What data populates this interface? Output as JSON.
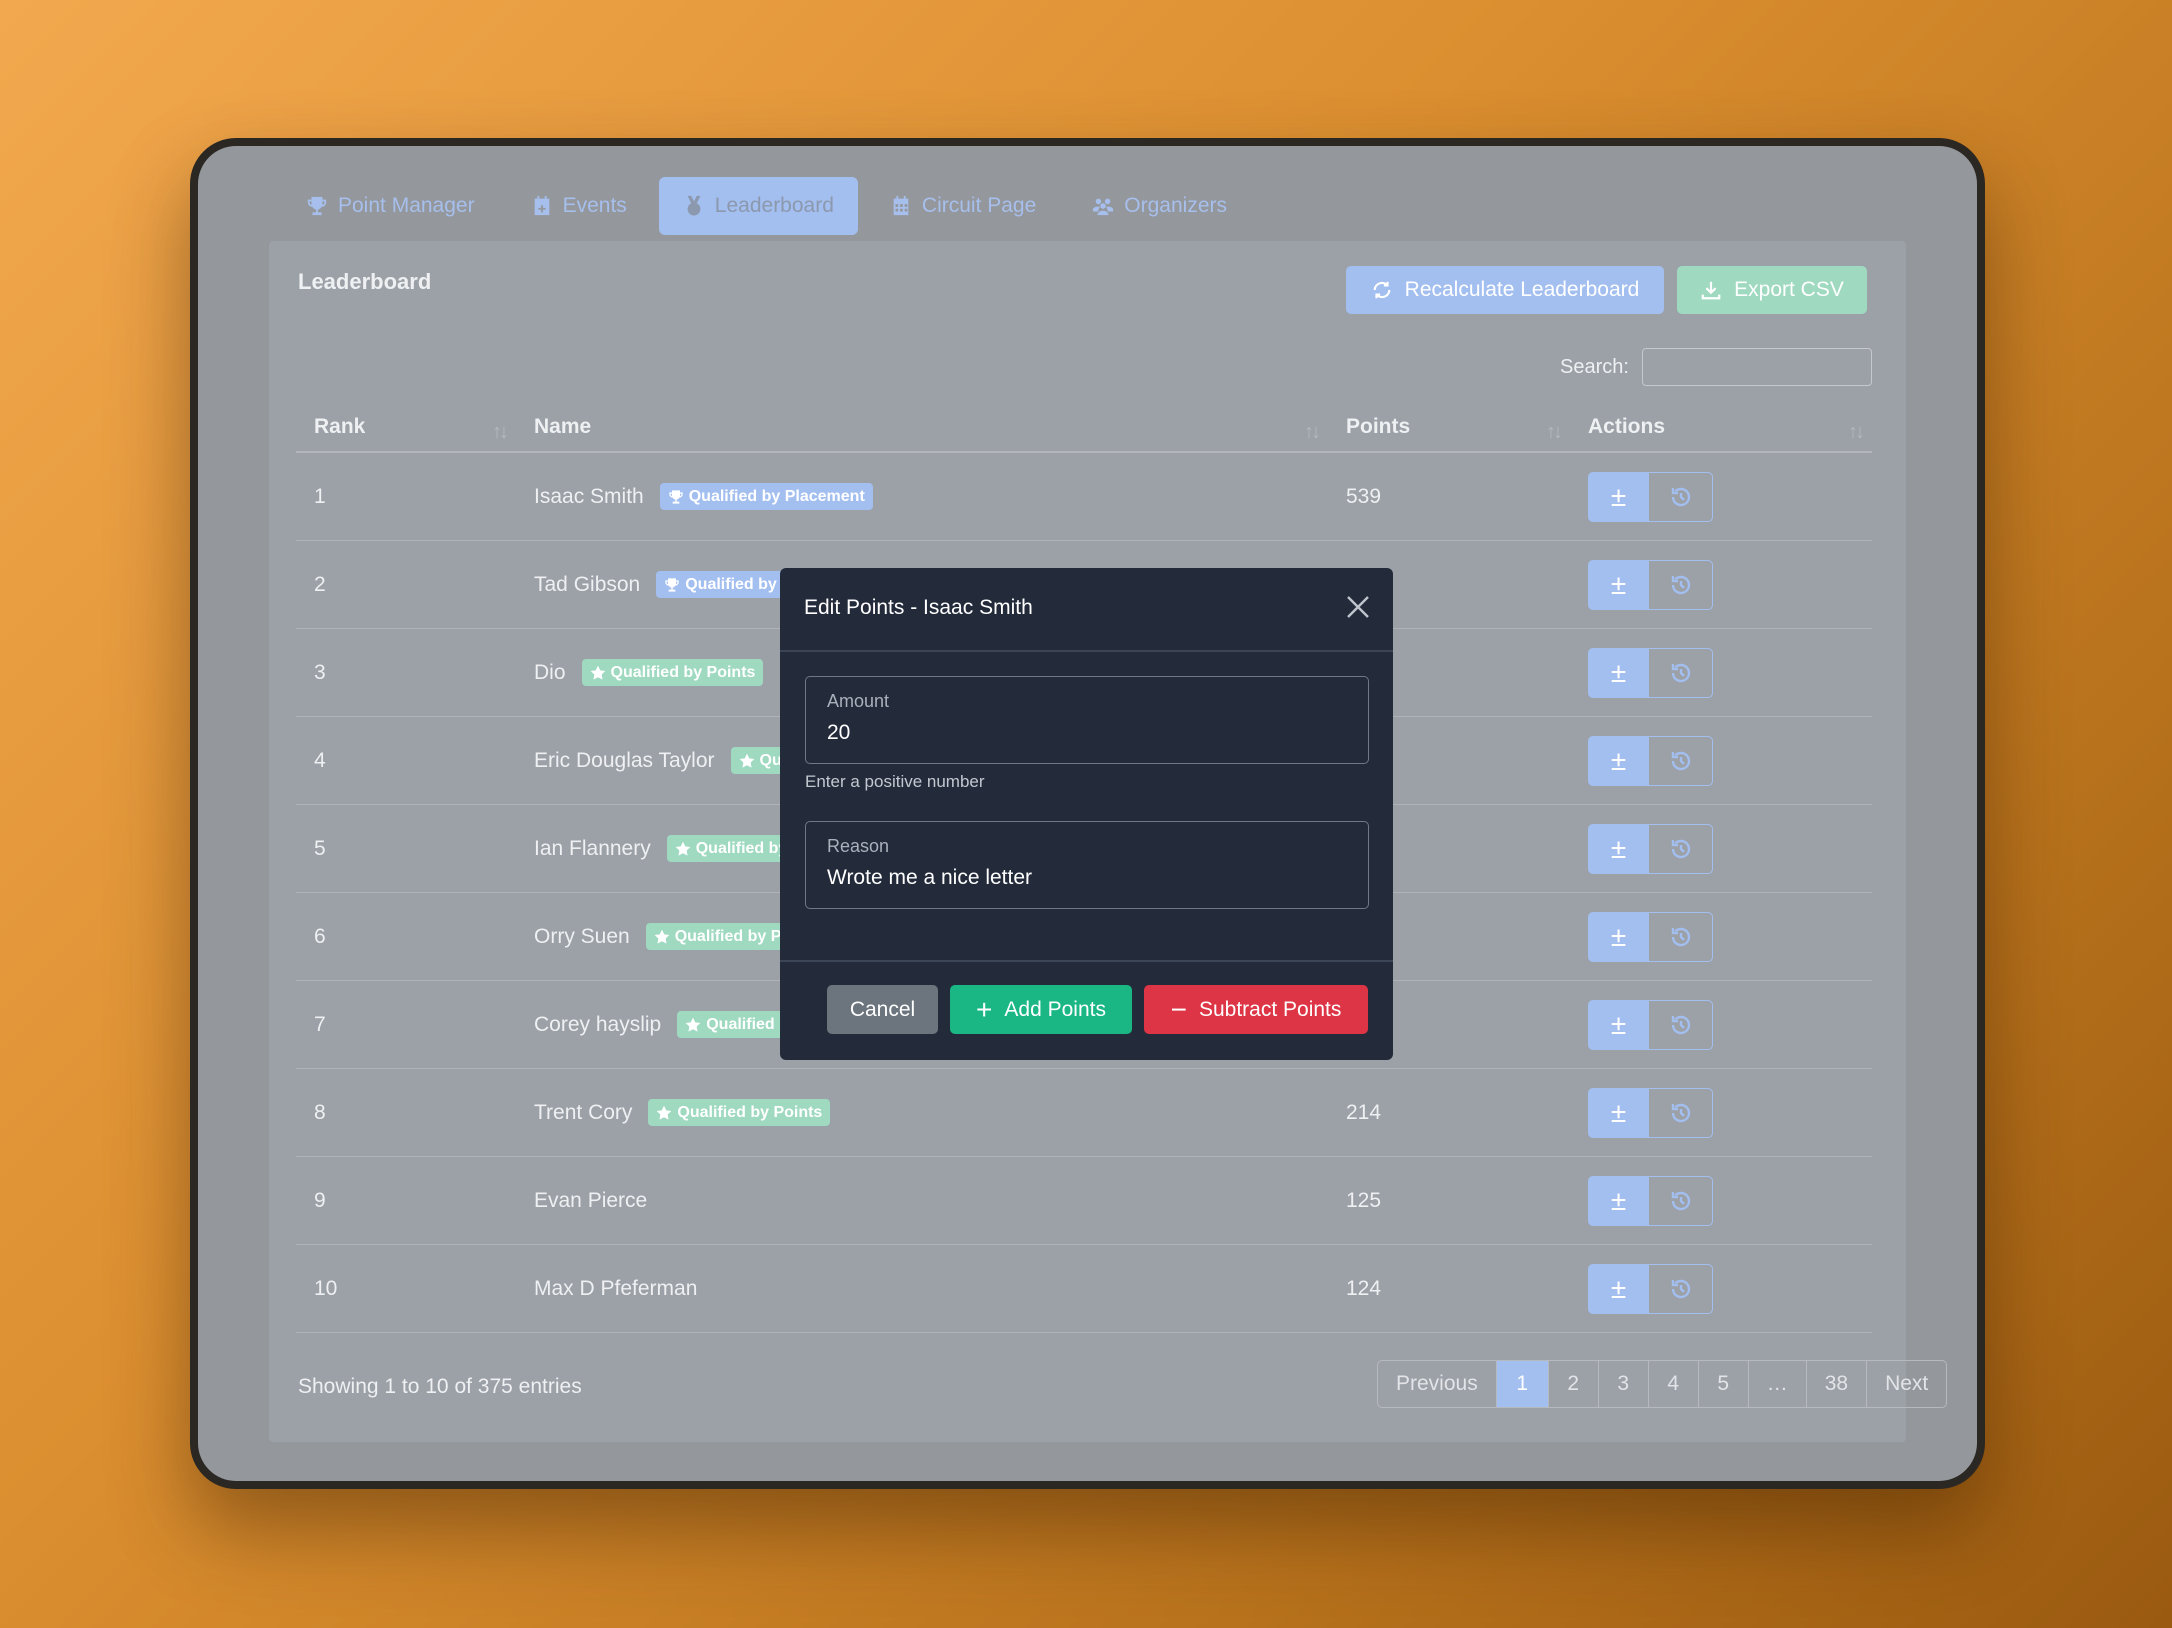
{
  "nav": {
    "tabs": [
      {
        "label": "Point Manager",
        "icon": "trophy-icon",
        "active": false
      },
      {
        "label": "Events",
        "icon": "calendar-plus-icon",
        "active": false
      },
      {
        "label": "Leaderboard",
        "icon": "medal-icon",
        "active": true
      },
      {
        "label": "Circuit Page",
        "icon": "calendar-icon",
        "active": false
      },
      {
        "label": "Organizers",
        "icon": "users-icon",
        "active": false
      }
    ]
  },
  "card": {
    "title": "Leaderboard",
    "recalculate_label": "Recalculate Leaderboard",
    "export_label": "Export CSV",
    "search_label": "Search:",
    "search_value": ""
  },
  "table": {
    "columns": [
      "Rank",
      "Name",
      "Points",
      "Actions"
    ],
    "rows": [
      {
        "rank": "1",
        "name": "Isaac Smith",
        "badge": "Qualified by Placement",
        "badge_type": "placement",
        "points": "539"
      },
      {
        "rank": "2",
        "name": "Tad Gibson",
        "badge": "Qualified by Placement",
        "badge_type": "placement",
        "points": ""
      },
      {
        "rank": "3",
        "name": "Dio",
        "badge": "Qualified by Points",
        "badge_type": "points",
        "points": ""
      },
      {
        "rank": "4",
        "name": "Eric Douglas Taylor",
        "badge": "Qualified by Points",
        "badge_type": "points",
        "points": ""
      },
      {
        "rank": "5",
        "name": "Ian Flannery",
        "badge": "Qualified by Points",
        "badge_type": "points",
        "points": ""
      },
      {
        "rank": "6",
        "name": "Orry Suen",
        "badge": "Qualified by Points",
        "badge_type": "points",
        "points": ""
      },
      {
        "rank": "7",
        "name": "Corey hayslip",
        "badge": "Qualified by Points",
        "badge_type": "points",
        "points": ""
      },
      {
        "rank": "8",
        "name": "Trent Cory",
        "badge": "Qualified by Points",
        "badge_type": "points",
        "points": "214"
      },
      {
        "rank": "9",
        "name": "Evan Pierce",
        "badge": "",
        "badge_type": "",
        "points": "125"
      },
      {
        "rank": "10",
        "name": "Max D Pfeferman",
        "badge": "",
        "badge_type": "",
        "points": "124"
      }
    ],
    "info": "Showing 1 to 10 of 375 entries",
    "pagination": [
      "Previous",
      "1",
      "2",
      "3",
      "4",
      "5",
      "…",
      "38",
      "Next"
    ],
    "current_page": "1"
  },
  "modal": {
    "title": "Edit Points - Isaac Smith",
    "amount_label": "Amount",
    "amount_value": "20",
    "amount_help": "Enter a positive number",
    "reason_label": "Reason",
    "reason_value": "Wrote me a nice letter",
    "cancel_label": "Cancel",
    "add_label": "Add Points",
    "subtract_label": "Subtract Points"
  },
  "colors": {
    "primary": "#a3bff0",
    "success": "#1ab785",
    "danger": "#dd3545",
    "modal_bg": "#232b3b"
  }
}
